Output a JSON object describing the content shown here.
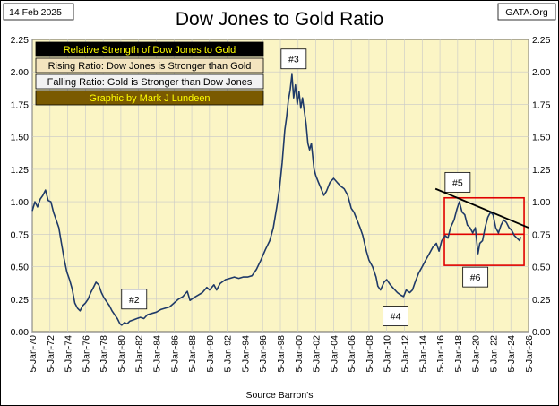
{
  "header": {
    "date": "14 Feb 2025",
    "title": "Dow Jones to Gold Ratio",
    "source_site": "GATA.Org"
  },
  "footer": {
    "source": "Source Barron's"
  },
  "legend": {
    "lines": [
      {
        "text": "Relative Strength of Dow Jones to Gold",
        "bg": "#000000",
        "fg": "#ffff00"
      },
      {
        "text": "Rising Ratio: Dow Jones is Stronger than Gold",
        "bg": "#f3e4bf",
        "fg": "#000000"
      },
      {
        "text": "Falling Ratio: Gold is Stronger than Dow Jones",
        "bg": "#f2f2f2",
        "fg": "#000000"
      },
      {
        "text": "Graphic by Mark J Lundeen",
        "bg": "#7a5a00",
        "fg": "#ffff00"
      }
    ]
  },
  "chart_data": {
    "type": "line",
    "ylim": [
      0,
      2.25
    ],
    "yticks": [
      "0.00",
      "0.25",
      "0.50",
      "0.75",
      "1.00",
      "1.25",
      "1.50",
      "1.75",
      "2.00",
      "2.25"
    ],
    "xlim": [
      1970,
      2026
    ],
    "xticks": [
      "5-Jan-70",
      "5-Jan-72",
      "5-Jan-74",
      "5-Jan-76",
      "5-Jan-78",
      "5-Jan-80",
      "5-Jan-82",
      "5-Jan-84",
      "5-Jan-86",
      "5-Jan-88",
      "5-Jan-90",
      "5-Jan-92",
      "5-Jan-94",
      "5-Jan-96",
      "5-Jan-98",
      "5-Jan-00",
      "5-Jan-02",
      "5-Jan-04",
      "5-Jan-06",
      "5-Jan-08",
      "5-Jan-10",
      "5-Jan-12",
      "5-Jan-14",
      "5-Jan-16",
      "5-Jan-18",
      "5-Jan-20",
      "5-Jan-22",
      "5-Jan-24",
      "5-Jan-26"
    ],
    "grid": true,
    "series": [
      {
        "color": "#1f3a68",
        "points": [
          [
            1970.0,
            0.93
          ],
          [
            1970.3,
            1.0
          ],
          [
            1970.6,
            0.96
          ],
          [
            1970.9,
            1.02
          ],
          [
            1971.2,
            1.05
          ],
          [
            1971.5,
            1.09
          ],
          [
            1971.8,
            1.01
          ],
          [
            1972.1,
            1.0
          ],
          [
            1972.4,
            0.92
          ],
          [
            1972.7,
            0.86
          ],
          [
            1973.0,
            0.8
          ],
          [
            1973.3,
            0.68
          ],
          [
            1973.6,
            0.56
          ],
          [
            1973.9,
            0.46
          ],
          [
            1974.2,
            0.4
          ],
          [
            1974.5,
            0.33
          ],
          [
            1974.8,
            0.22
          ],
          [
            1975.1,
            0.18
          ],
          [
            1975.4,
            0.16
          ],
          [
            1975.7,
            0.2
          ],
          [
            1976.0,
            0.22
          ],
          [
            1976.3,
            0.25
          ],
          [
            1976.6,
            0.3
          ],
          [
            1976.9,
            0.34
          ],
          [
            1977.2,
            0.38
          ],
          [
            1977.5,
            0.36
          ],
          [
            1977.8,
            0.3
          ],
          [
            1978.1,
            0.26
          ],
          [
            1978.4,
            0.23
          ],
          [
            1978.7,
            0.2
          ],
          [
            1979.0,
            0.16
          ],
          [
            1979.3,
            0.13
          ],
          [
            1979.6,
            0.1
          ],
          [
            1979.9,
            0.06
          ],
          [
            1980.1,
            0.05
          ],
          [
            1980.4,
            0.07
          ],
          [
            1980.7,
            0.06
          ],
          [
            1981.0,
            0.08
          ],
          [
            1981.4,
            0.09
          ],
          [
            1981.8,
            0.1
          ],
          [
            1982.2,
            0.11
          ],
          [
            1982.6,
            0.1
          ],
          [
            1983.0,
            0.13
          ],
          [
            1983.5,
            0.14
          ],
          [
            1984.0,
            0.15
          ],
          [
            1984.5,
            0.17
          ],
          [
            1985.0,
            0.18
          ],
          [
            1985.5,
            0.19
          ],
          [
            1986.0,
            0.22
          ],
          [
            1986.5,
            0.25
          ],
          [
            1987.0,
            0.27
          ],
          [
            1987.5,
            0.31
          ],
          [
            1987.8,
            0.24
          ],
          [
            1988.2,
            0.26
          ],
          [
            1988.7,
            0.28
          ],
          [
            1989.2,
            0.3
          ],
          [
            1989.7,
            0.34
          ],
          [
            1990.0,
            0.32
          ],
          [
            1990.5,
            0.36
          ],
          [
            1990.8,
            0.32
          ],
          [
            1991.2,
            0.37
          ],
          [
            1991.8,
            0.4
          ],
          [
            1992.3,
            0.41
          ],
          [
            1992.8,
            0.42
          ],
          [
            1993.3,
            0.41
          ],
          [
            1993.8,
            0.42
          ],
          [
            1994.3,
            0.42
          ],
          [
            1994.8,
            0.43
          ],
          [
            1995.3,
            0.48
          ],
          [
            1995.8,
            0.55
          ],
          [
            1996.3,
            0.63
          ],
          [
            1996.8,
            0.7
          ],
          [
            1997.2,
            0.8
          ],
          [
            1997.6,
            0.96
          ],
          [
            1997.9,
            1.1
          ],
          [
            1998.2,
            1.3
          ],
          [
            1998.5,
            1.55
          ],
          [
            1998.7,
            1.65
          ],
          [
            1998.9,
            1.78
          ],
          [
            1999.1,
            1.86
          ],
          [
            1999.3,
            1.98
          ],
          [
            1999.5,
            1.8
          ],
          [
            1999.7,
            1.9
          ],
          [
            1999.9,
            1.75
          ],
          [
            2000.1,
            1.85
          ],
          [
            2000.3,
            1.72
          ],
          [
            2000.5,
            1.8
          ],
          [
            2000.7,
            1.7
          ],
          [
            2000.9,
            1.6
          ],
          [
            2001.1,
            1.45
          ],
          [
            2001.3,
            1.4
          ],
          [
            2001.5,
            1.45
          ],
          [
            2001.8,
            1.25
          ],
          [
            2002.0,
            1.2
          ],
          [
            2002.3,
            1.15
          ],
          [
            2002.6,
            1.1
          ],
          [
            2002.9,
            1.05
          ],
          [
            2003.2,
            1.08
          ],
          [
            2003.6,
            1.15
          ],
          [
            2004.0,
            1.18
          ],
          [
            2004.4,
            1.15
          ],
          [
            2004.8,
            1.12
          ],
          [
            2005.2,
            1.1
          ],
          [
            2005.6,
            1.05
          ],
          [
            2006.0,
            0.95
          ],
          [
            2006.3,
            0.92
          ],
          [
            2006.7,
            0.85
          ],
          [
            2007.0,
            0.8
          ],
          [
            2007.3,
            0.74
          ],
          [
            2007.7,
            0.62
          ],
          [
            2008.0,
            0.55
          ],
          [
            2008.4,
            0.5
          ],
          [
            2008.8,
            0.42
          ],
          [
            2009.0,
            0.35
          ],
          [
            2009.3,
            0.32
          ],
          [
            2009.7,
            0.38
          ],
          [
            2010.0,
            0.4
          ],
          [
            2010.4,
            0.36
          ],
          [
            2010.8,
            0.33
          ],
          [
            2011.2,
            0.3
          ],
          [
            2011.6,
            0.28
          ],
          [
            2011.9,
            0.27
          ],
          [
            2012.2,
            0.32
          ],
          [
            2012.6,
            0.3
          ],
          [
            2012.9,
            0.32
          ],
          [
            2013.2,
            0.38
          ],
          [
            2013.6,
            0.45
          ],
          [
            2014.0,
            0.5
          ],
          [
            2014.4,
            0.55
          ],
          [
            2014.8,
            0.6
          ],
          [
            2015.2,
            0.65
          ],
          [
            2015.6,
            0.68
          ],
          [
            2015.9,
            0.62
          ],
          [
            2016.2,
            0.7
          ],
          [
            2016.6,
            0.74
          ],
          [
            2016.9,
            0.72
          ],
          [
            2017.2,
            0.8
          ],
          [
            2017.6,
            0.86
          ],
          [
            2017.9,
            0.94
          ],
          [
            2018.2,
            1.0
          ],
          [
            2018.5,
            0.92
          ],
          [
            2018.8,
            0.9
          ],
          [
            2019.1,
            0.82
          ],
          [
            2019.4,
            0.8
          ],
          [
            2019.7,
            0.76
          ],
          [
            2020.0,
            0.8
          ],
          [
            2020.3,
            0.6
          ],
          [
            2020.5,
            0.68
          ],
          [
            2020.8,
            0.7
          ],
          [
            2021.1,
            0.8
          ],
          [
            2021.4,
            0.88
          ],
          [
            2021.7,
            0.92
          ],
          [
            2022.0,
            0.9
          ],
          [
            2022.3,
            0.8
          ],
          [
            2022.6,
            0.76
          ],
          [
            2022.9,
            0.82
          ],
          [
            2023.2,
            0.86
          ],
          [
            2023.5,
            0.84
          ],
          [
            2023.8,
            0.8
          ],
          [
            2024.1,
            0.78
          ],
          [
            2024.4,
            0.74
          ],
          [
            2024.7,
            0.72
          ],
          [
            2025.0,
            0.7
          ],
          [
            2025.1,
            0.73
          ]
        ]
      }
    ],
    "annotations": [
      {
        "label": "#2",
        "x": 1981.5,
        "y": 0.25
      },
      {
        "label": "#3",
        "x": 1999.5,
        "y": 2.1
      },
      {
        "label": "#4",
        "x": 2011.0,
        "y": 0.12
      },
      {
        "label": "#5",
        "x": 2018.0,
        "y": 1.15
      },
      {
        "label": "#6",
        "x": 2020.0,
        "y": 0.42
      }
    ],
    "trendline": {
      "x1": 2015.5,
      "y1": 1.1,
      "x2": 2026.0,
      "y2": 0.8,
      "color": "#000000"
    },
    "hline": {
      "x1": 2016.5,
      "x2": 2025.5,
      "y": 0.75,
      "color": "#e00000"
    },
    "rect": {
      "x1": 2016.5,
      "x2": 2025.5,
      "y1": 0.51,
      "y2": 1.03,
      "color": "#e00000"
    }
  }
}
